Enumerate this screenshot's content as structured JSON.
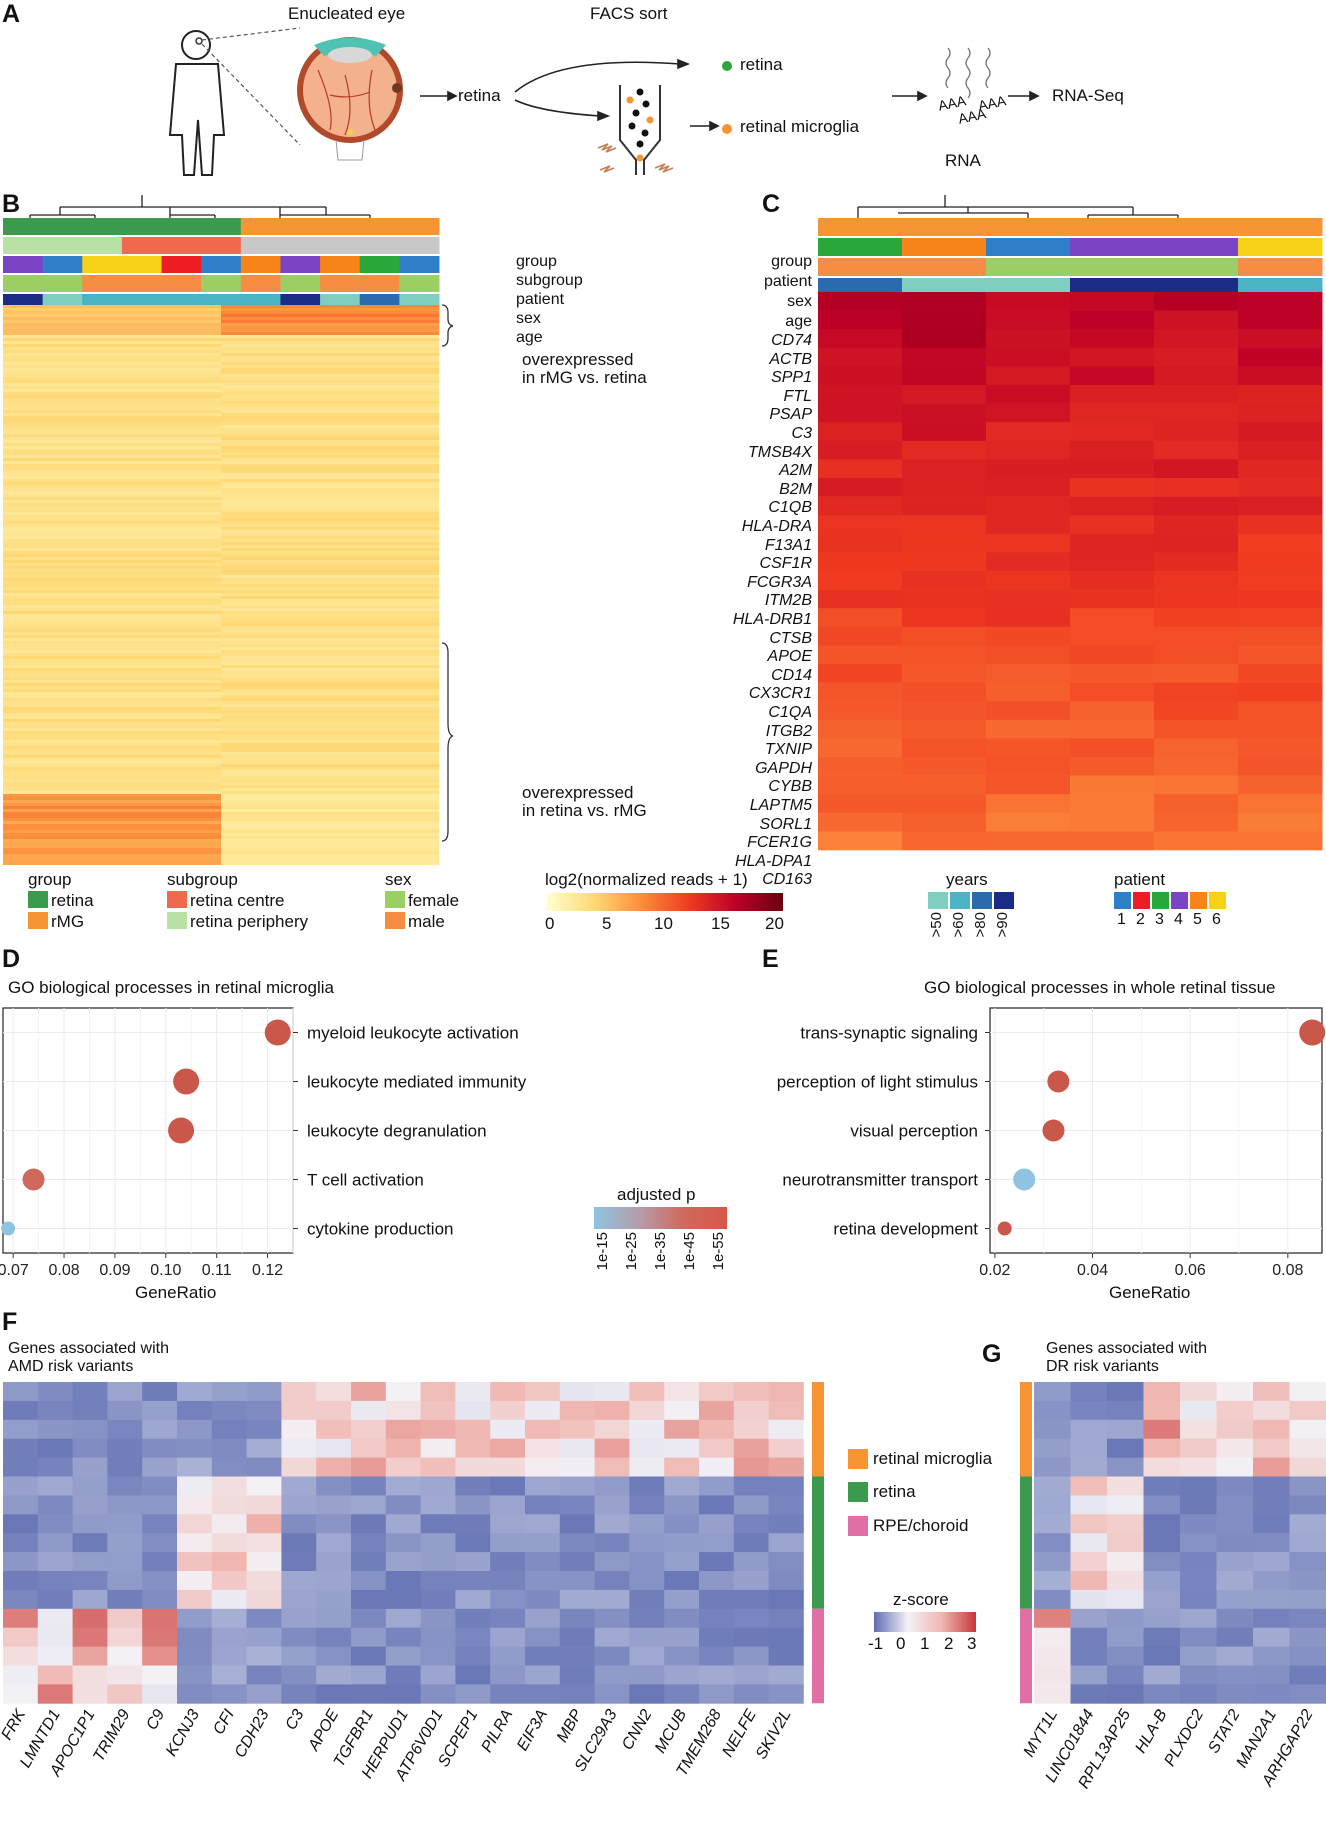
{
  "panel_labels": {
    "a": "A",
    "b": "B",
    "c": "C",
    "d": "D",
    "e": "E",
    "f": "F",
    "g": "G"
  },
  "panel_a": {
    "enucleated_eye": "Enucleated eye",
    "facs_sort": "FACS sort",
    "retina": "retina",
    "retina_out": "retina",
    "retinal_microglia": "retinal microglia",
    "rna": "RNA",
    "rnaseq": "RNA-Seq",
    "polyA": "AAA"
  },
  "panel_b": {
    "tracks": [
      "group",
      "subgroup",
      "patient",
      "sex",
      "age"
    ],
    "annot1": "overexpressed",
    "annot1b": "in rMG vs. retina",
    "annot2": "overexpressed",
    "annot2b": "in retina vs. rMG"
  },
  "panel_c": {
    "tracks": [
      "group",
      "patient",
      "sex",
      "age"
    ],
    "genes": [
      "CD74",
      "ACTB",
      "SPP1",
      "FTL",
      "PSAP",
      "C3",
      "TMSB4X",
      "A2M",
      "B2M",
      "C1QB",
      "HLA-DRA",
      "F13A1",
      "CSF1R",
      "FCGR3A",
      "ITM2B",
      "HLA-DRB1",
      "CTSB",
      "APOE",
      "CD14",
      "CX3CR1",
      "C1QA",
      "ITGB2",
      "TXNIP",
      "GAPDH",
      "CYBB",
      "LAPTM5",
      "SORL1",
      "FCER1G",
      "HLA-DPA1",
      "CD163"
    ]
  },
  "legend_bc": {
    "group_title": "group",
    "group_items": [
      "retina",
      "rMG"
    ],
    "subgroup_title": "subgroup",
    "subgroup_items": [
      "retina centre",
      "retina periphery"
    ],
    "sex_title": "sex",
    "sex_items": [
      "female",
      "male"
    ],
    "scale_title": "log2(normalized reads + 1)",
    "scale_ticks": [
      "0",
      "5",
      "10",
      "15",
      "20"
    ],
    "years_title": "years",
    "years_ticks": [
      ">50",
      ">60",
      ">80",
      ">90"
    ],
    "patient_title": "patient",
    "patient_ticks": [
      "1",
      "2",
      "3",
      "4",
      "5",
      "6"
    ]
  },
  "colors": {
    "retina": "#3c9a4e",
    "rmg": "#f79433",
    "centre": "#f0694e",
    "periphery": "#b9e0a5",
    "female": "#9bcf64",
    "male": "#f58d43",
    "gray": "#c8c8c8",
    "patients": [
      "#2f7fc8",
      "#ee1c25",
      "#2aa63b",
      "#7a44c4",
      "#f78418",
      "#f7d117"
    ],
    "ages": [
      "#7fcec0",
      "#4bb3c4",
      "#2a6aad",
      "#1b2c86"
    ],
    "dot_red": "#c9574a",
    "dot_blue": "#8ec3e2"
  },
  "chart_data": [
    {
      "type": "scatter",
      "title": "GO biological processes in retinal microglia",
      "xlabel": "GeneRatio",
      "categories": [
        "myeloid leukocyte activation",
        "leukocyte mediated immunity",
        "leukocyte degranulation",
        "T cell activation",
        "cytokine production"
      ],
      "x": [
        0.122,
        0.104,
        0.103,
        0.074,
        0.069
      ],
      "color_tier": [
        5,
        5,
        5,
        4,
        1
      ],
      "size_tier": [
        3,
        3,
        3,
        2,
        1
      ],
      "xlim": [
        0.068,
        0.125
      ],
      "xticks": [
        "0.07",
        "0.08",
        "0.09",
        "0.10",
        "0.11",
        "0.12"
      ]
    },
    {
      "type": "scatter",
      "title": "GO biological processes in whole retinal tissue",
      "xlabel": "GeneRatio",
      "categories": [
        "trans-synaptic signaling",
        "perception of light stimulus",
        "visual perception",
        "neurotransmitter transport",
        "retina development"
      ],
      "x": [
        0.085,
        0.033,
        0.032,
        0.026,
        0.022
      ],
      "color_tier": [
        5,
        5,
        5,
        1,
        5
      ],
      "size_tier": [
        3,
        2,
        2,
        2,
        1
      ],
      "xlim": [
        0.019,
        0.087
      ],
      "xticks": [
        "0.02",
        "0.04",
        "0.06",
        "0.08"
      ]
    },
    {
      "type": "heatmap",
      "title": "Genes associated with AMD risk variants",
      "columns": [
        "FRK",
        "LMNTD1",
        "APOC1P1",
        "TRIM29",
        "C9",
        "KCNJ3",
        "CFI",
        "CDH23",
        "C3",
        "APOE",
        "TGFBR1",
        "HERPUD1",
        "ATP6V0D1",
        "SCPEP1",
        "PILRA",
        "EIF3A",
        "MBP",
        "SLC29A3",
        "CNN2",
        "MCUB",
        "TMEM268",
        "NELFE",
        "SKIV2L"
      ],
      "row_groups": [
        "retinal microglia",
        "retina",
        "RPE/choroid"
      ]
    },
    {
      "type": "heatmap",
      "title": "Genes associated with DR risk variants",
      "columns": [
        "MYT1L",
        "LINC01844",
        "RPL13AP25",
        "HLA-B",
        "PLXDC2",
        "STAT2",
        "MAN2A1",
        "ARHGAP22"
      ],
      "row_groups": [
        "retinal microglia",
        "retina",
        "RPE/choroid"
      ]
    }
  ],
  "legend_d": {
    "title": "adjusted p",
    "ticks": [
      "1e-15",
      "1e-25",
      "1e-35",
      "1e-45",
      "1e-55"
    ]
  },
  "legend_f": {
    "groups": [
      "retinal microglia",
      "retina",
      "RPE/choroid"
    ],
    "group_colors": [
      "#f79433",
      "#3c9a4e",
      "#e06fa5"
    ],
    "zscore_title": "z-score",
    "zscore_ticks": [
      "-1",
      "0",
      "1",
      "2",
      "3"
    ]
  },
  "panel_f": {
    "title_line1": "Genes associated with",
    "title_line2": "AMD risk variants"
  },
  "panel_g": {
    "title_line1": "Genes associated with",
    "title_line2": "DR risk variants"
  }
}
